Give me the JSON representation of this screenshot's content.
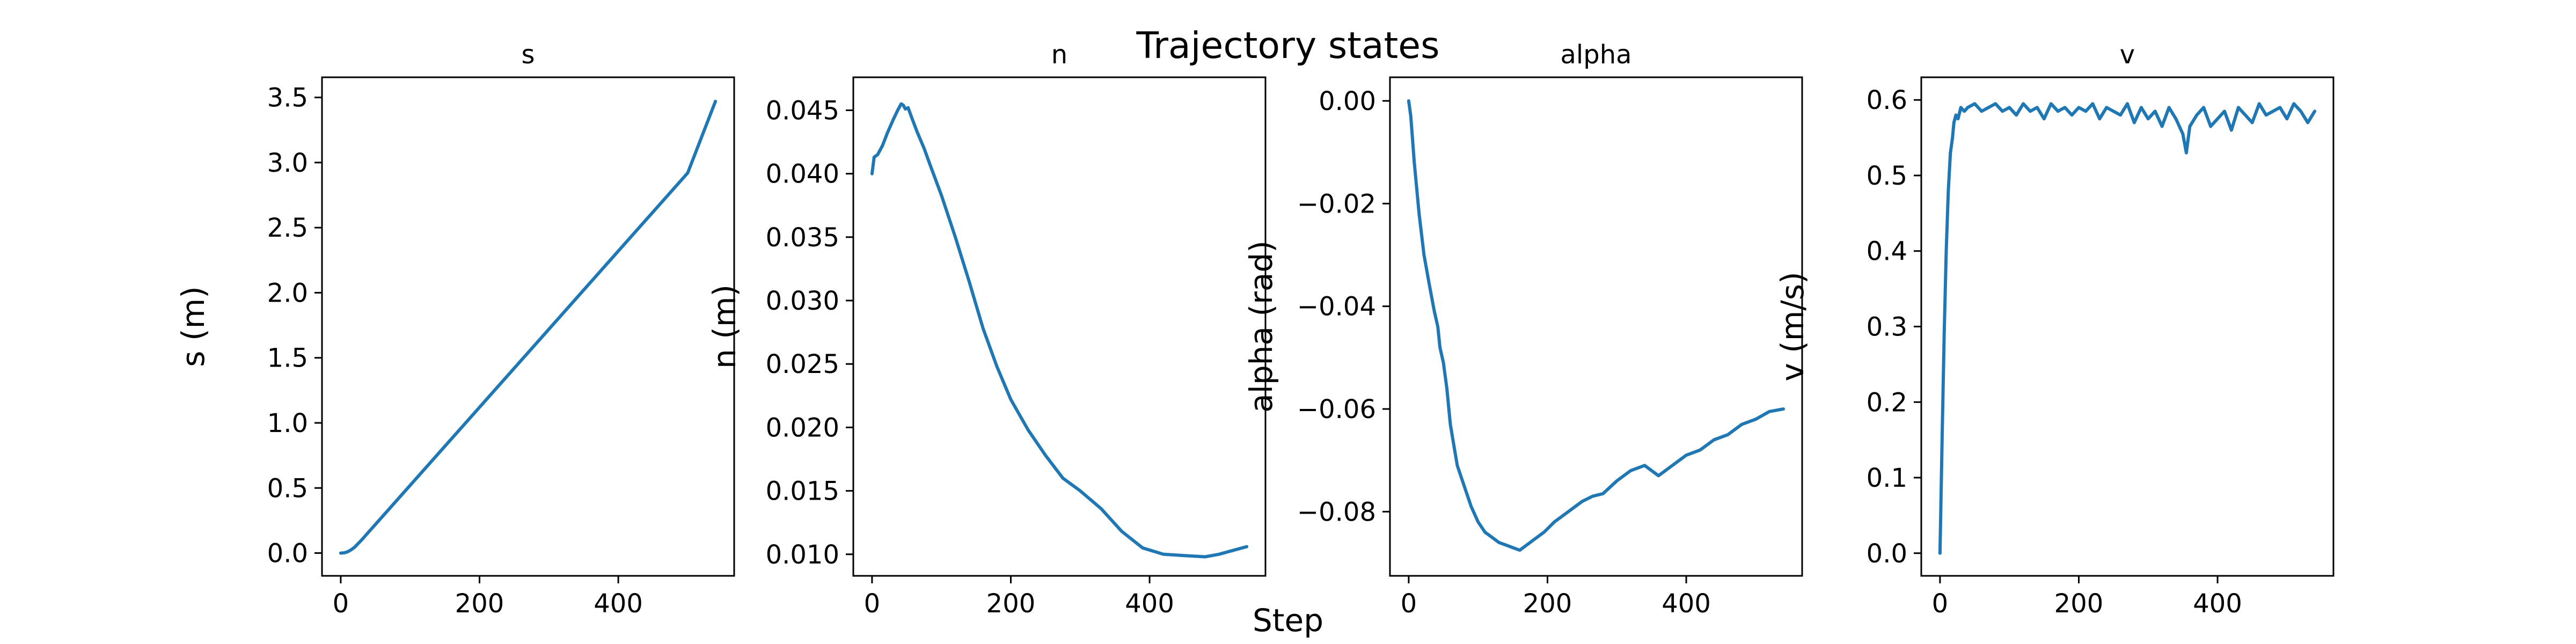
{
  "figure": {
    "suptitle": "Trajectory states",
    "supxlabel": "Step",
    "line_color": "#1f77b4"
  },
  "chart_data": [
    {
      "type": "line",
      "title": "s",
      "xlabel": "",
      "ylabel": "s (m)",
      "xlim": [
        -27,
        567
      ],
      "ylim": [
        -0.175,
        3.655
      ],
      "xticks": [
        0,
        200,
        400
      ],
      "yticks": [
        0.0,
        0.5,
        1.0,
        1.5,
        2.0,
        2.5,
        3.0,
        3.5
      ],
      "ytick_labels": [
        "0.0",
        "0.5",
        "1.0",
        "1.5",
        "2.0",
        "2.5",
        "3.0",
        "3.5"
      ],
      "grid": false,
      "series": [
        {
          "x": [
            0,
            5,
            10,
            15,
            20,
            30,
            40,
            60,
            100,
            200,
            300,
            400,
            500,
            540
          ],
          "y": [
            0.0,
            0.002,
            0.01,
            0.025,
            0.045,
            0.1,
            0.16,
            0.28,
            0.52,
            1.12,
            1.72,
            2.32,
            2.92,
            3.47
          ]
        }
      ]
    },
    {
      "type": "line",
      "title": "n",
      "xlabel": "",
      "ylabel": "n (m)",
      "xlim": [
        -27,
        567
      ],
      "ylim": [
        0.0083,
        0.0476
      ],
      "xticks": [
        0,
        200,
        400
      ],
      "yticks": [
        0.01,
        0.015,
        0.02,
        0.025,
        0.03,
        0.035,
        0.04,
        0.045
      ],
      "ytick_labels": [
        "0.010",
        "0.015",
        "0.020",
        "0.025",
        "0.030",
        "0.035",
        "0.040",
        "0.045"
      ],
      "grid": false,
      "series": [
        {
          "x": [
            0,
            3,
            8,
            15,
            22,
            30,
            37,
            42,
            45,
            48,
            52,
            58,
            65,
            75,
            85,
            100,
            120,
            140,
            160,
            180,
            200,
            225,
            250,
            275,
            300,
            330,
            360,
            390,
            420,
            450,
            480,
            500,
            520,
            540
          ],
          "y": [
            0.04,
            0.0413,
            0.0415,
            0.0422,
            0.0432,
            0.0442,
            0.045,
            0.0455,
            0.0454,
            0.0451,
            0.0452,
            0.0443,
            0.0433,
            0.042,
            0.0405,
            0.0383,
            0.035,
            0.0315,
            0.0278,
            0.0248,
            0.0222,
            0.0198,
            0.0178,
            0.016,
            0.015,
            0.0136,
            0.0118,
            0.0105,
            0.01,
            0.0099,
            0.0098,
            0.01,
            0.0103,
            0.0106
          ]
        }
      ]
    },
    {
      "type": "line",
      "title": "alpha",
      "xlabel": "",
      "ylabel": "alpha (rad)",
      "xlim": [
        -27,
        567
      ],
      "ylim": [
        -0.0925,
        0.0046
      ],
      "xticks": [
        0,
        200,
        400
      ],
      "yticks": [
        0.0,
        -0.02,
        -0.04,
        -0.06,
        -0.08
      ],
      "ytick_labels": [
        "0.00",
        "−0.02",
        "−0.04",
        "−0.06",
        "−0.08"
      ],
      "grid": false,
      "series": [
        {
          "x": [
            0,
            3,
            8,
            15,
            22,
            30,
            37,
            42,
            45,
            50,
            55,
            60,
            65,
            70,
            80,
            90,
            100,
            110,
            120,
            130,
            140,
            150,
            160,
            170,
            180,
            195,
            210,
            230,
            250,
            265,
            280,
            300,
            320,
            340,
            360,
            380,
            400,
            420,
            440,
            460,
            480,
            500,
            520,
            540
          ],
          "y": [
            0.0,
            -0.003,
            -0.012,
            -0.022,
            -0.03,
            -0.036,
            -0.041,
            -0.044,
            -0.048,
            -0.051,
            -0.056,
            -0.063,
            -0.067,
            -0.071,
            -0.075,
            -0.079,
            -0.082,
            -0.084,
            -0.085,
            -0.086,
            -0.0865,
            -0.087,
            -0.0875,
            -0.0865,
            -0.0855,
            -0.084,
            -0.082,
            -0.08,
            -0.078,
            -0.077,
            -0.0765,
            -0.074,
            -0.072,
            -0.071,
            -0.073,
            -0.071,
            -0.069,
            -0.068,
            -0.066,
            -0.065,
            -0.063,
            -0.062,
            -0.0605,
            -0.06
          ]
        }
      ]
    },
    {
      "type": "line",
      "title": "v",
      "xlabel": "",
      "ylabel": "v (m/s)",
      "xlim": [
        -27,
        567
      ],
      "ylim": [
        -0.03,
        0.63
      ],
      "xticks": [
        0,
        200,
        400
      ],
      "yticks": [
        0.0,
        0.1,
        0.2,
        0.3,
        0.4,
        0.5,
        0.6
      ],
      "ytick_labels": [
        "0.0",
        "0.1",
        "0.2",
        "0.3",
        "0.4",
        "0.5",
        "0.6"
      ],
      "grid": false,
      "series": [
        {
          "x": [
            0,
            3,
            6,
            9,
            12,
            15,
            18,
            20,
            23,
            26,
            30,
            35,
            40,
            50,
            60,
            70,
            80,
            90,
            100,
            110,
            120,
            130,
            140,
            150,
            160,
            170,
            180,
            190,
            200,
            210,
            220,
            230,
            240,
            250,
            260,
            270,
            280,
            290,
            300,
            310,
            320,
            330,
            340,
            350,
            355,
            360,
            370,
            380,
            390,
            400,
            410,
            420,
            430,
            440,
            450,
            460,
            470,
            480,
            490,
            500,
            510,
            520,
            530,
            540
          ],
          "y": [
            0.0,
            0.15,
            0.29,
            0.4,
            0.48,
            0.53,
            0.55,
            0.57,
            0.58,
            0.575,
            0.59,
            0.585,
            0.59,
            0.595,
            0.585,
            0.59,
            0.595,
            0.585,
            0.59,
            0.58,
            0.595,
            0.585,
            0.59,
            0.575,
            0.595,
            0.585,
            0.59,
            0.58,
            0.59,
            0.585,
            0.595,
            0.575,
            0.59,
            0.585,
            0.58,
            0.595,
            0.57,
            0.59,
            0.575,
            0.585,
            0.565,
            0.59,
            0.575,
            0.555,
            0.53,
            0.565,
            0.58,
            0.59,
            0.565,
            0.575,
            0.585,
            0.56,
            0.59,
            0.58,
            0.57,
            0.595,
            0.58,
            0.585,
            0.59,
            0.575,
            0.595,
            0.585,
            0.57,
            0.585
          ]
        }
      ]
    }
  ]
}
